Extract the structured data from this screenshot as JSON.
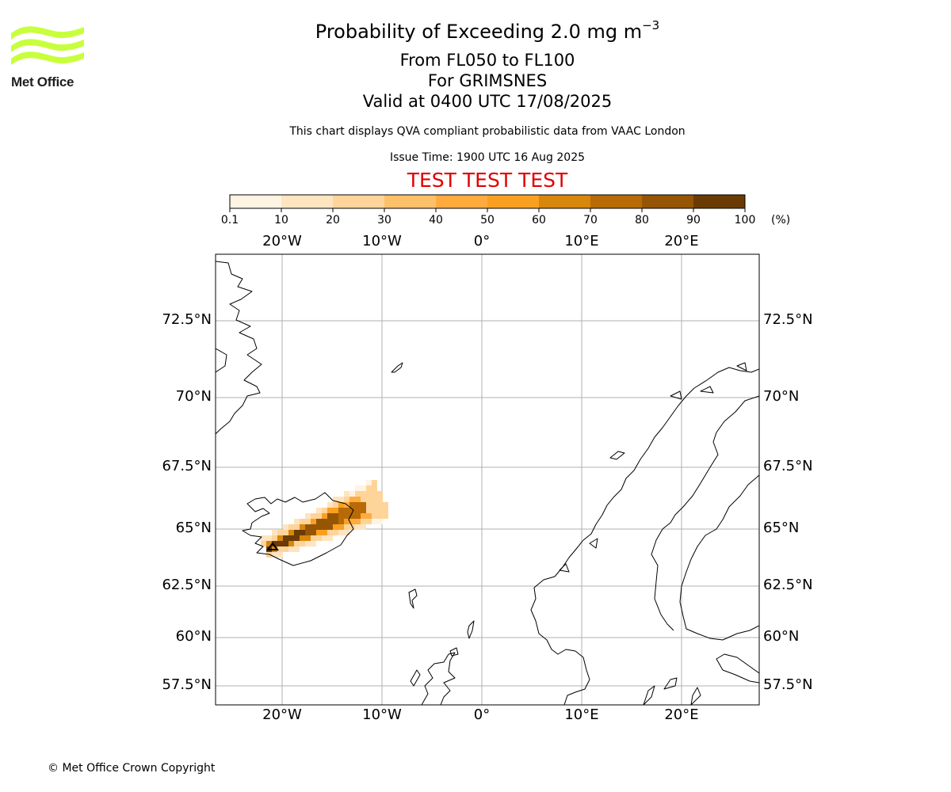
{
  "logo": {
    "text": "Met Office",
    "wave_color": "#c8ff3c"
  },
  "header": {
    "title_main": "Probability of Exceeding 2.0 mg m",
    "title_exponent": "−3",
    "flight_levels": "From FL050 to FL100",
    "volcano": "For GRIMSNES",
    "valid_time": "Valid at 0400 UTC 17/08/2025",
    "note": "This chart displays QVA compliant probabilistic data from VAAC London",
    "issue_time": "Issue Time: 1900 UTC 16 Aug 2025",
    "banner": "TEST TEST TEST",
    "banner_color": "#e00000"
  },
  "colorbar": {
    "ticks": [
      "0.1",
      "10",
      "20",
      "30",
      "40",
      "50",
      "60",
      "70",
      "80",
      "90",
      "100"
    ],
    "unit": "(%)",
    "colors": [
      "#fff3e2",
      "#ffe4c0",
      "#ffd49a",
      "#ffc06a",
      "#ffab3e",
      "#f9a020",
      "#d8860c",
      "#b86a06",
      "#965504",
      "#6a3b04"
    ]
  },
  "map": {
    "lon_labels": [
      "20°W",
      "10°W",
      "0°",
      "10°E",
      "20°E"
    ],
    "lat_labels": [
      "72.5°N",
      "70°N",
      "67.5°N",
      "65°N",
      "62.5°N",
      "60°N",
      "57.5°N"
    ],
    "grid_color": "#b0b0b0",
    "source_marker": "triangle-icon"
  },
  "footer": {
    "copyright": "© Met Office Crown Copyright"
  }
}
